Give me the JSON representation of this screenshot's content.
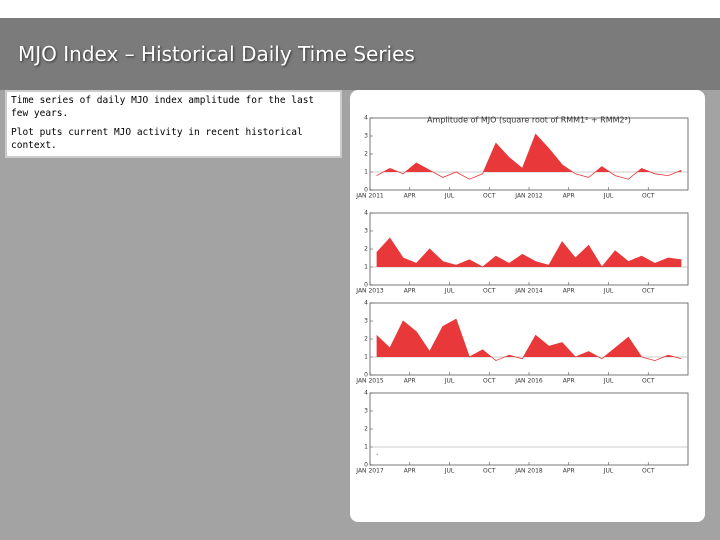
{
  "header": {
    "title": "MJO Index – Historical Daily Time Series"
  },
  "text": {
    "paragraphs": [
      "Time series of daily MJO index amplitude for the last few years.",
      "Plot puts current MJO activity in recent historical context."
    ]
  },
  "chart_data": [
    {
      "type": "area",
      "title": "Amplitude of MJO (square root of RMM1² + RMM2²)",
      "color": "#e8383a",
      "threshold": 1,
      "categories": [
        "JAN 2011",
        null,
        null,
        "APR",
        null,
        null,
        "JUL",
        null,
        null,
        "OCT",
        null,
        null,
        "JAN 2012",
        null,
        null,
        "APR",
        null,
        null,
        "JUL",
        null,
        null,
        "OCT",
        null,
        null
      ],
      "values": [
        0.8,
        1.2,
        0.9,
        1.5,
        1.1,
        0.7,
        1.0,
        0.6,
        0.9,
        2.6,
        1.8,
        1.2,
        3.1,
        2.3,
        1.4,
        0.9,
        0.7,
        1.3,
        0.8,
        0.6,
        1.2,
        0.9,
        0.8,
        1.1
      ],
      "ylim": [
        0,
        4
      ],
      "yticks": [
        0,
        1,
        2,
        3,
        4
      ]
    },
    {
      "type": "area",
      "color": "#e8383a",
      "threshold": 1,
      "categories": [
        "JAN 2013",
        null,
        null,
        "APR",
        null,
        null,
        "JUL",
        null,
        null,
        "OCT",
        null,
        null,
        "JAN 2014",
        null,
        null,
        "APR",
        null,
        null,
        "JUL",
        null,
        null,
        "OCT",
        null,
        null
      ],
      "values": [
        1.8,
        2.6,
        1.5,
        1.2,
        2.0,
        1.3,
        1.1,
        1.4,
        1.0,
        1.6,
        1.2,
        1.7,
        1.3,
        1.1,
        2.4,
        1.5,
        2.2,
        1.0,
        1.9,
        1.3,
        1.6,
        1.2,
        1.5,
        1.4
      ],
      "ylim": [
        0,
        4
      ],
      "yticks": [
        0,
        1,
        2,
        3,
        4
      ]
    },
    {
      "type": "area",
      "color": "#e8383a",
      "threshold": 1,
      "categories": [
        "JAN 2015",
        null,
        null,
        "APR",
        null,
        null,
        "JUL",
        null,
        null,
        "OCT",
        null,
        null,
        "JAN 2016",
        null,
        null,
        "APR",
        null,
        null,
        "JUL",
        null,
        null,
        "OCT",
        null,
        null
      ],
      "values": [
        2.2,
        1.5,
        3.0,
        2.4,
        1.3,
        2.7,
        3.1,
        1.0,
        1.4,
        0.8,
        1.1,
        0.9,
        2.2,
        1.6,
        1.8,
        1.0,
        1.3,
        0.9,
        1.5,
        2.1,
        1.0,
        0.8,
        1.1,
        0.9
      ],
      "ylim": [
        0,
        4
      ],
      "yticks": [
        0,
        1,
        2,
        3,
        4
      ]
    },
    {
      "type": "area",
      "color": "#e8383a",
      "threshold": 1,
      "categories": [
        "JAN 2017",
        null,
        null,
        "APR",
        null,
        null,
        "JUL",
        null,
        null,
        "OCT",
        null,
        null,
        "JAN 2018",
        null,
        null,
        "APR",
        null,
        null,
        "JUL",
        null,
        null,
        "OCT",
        null,
        null
      ],
      "values": [
        0.6,
        null,
        null,
        null,
        null,
        null,
        null,
        null,
        null,
        null,
        null,
        null,
        null,
        null,
        null,
        null,
        null,
        null,
        null,
        null,
        null,
        null,
        null,
        null
      ],
      "ylim": [
        0,
        4
      ],
      "yticks": [
        0,
        1,
        2,
        3,
        4
      ]
    }
  ]
}
